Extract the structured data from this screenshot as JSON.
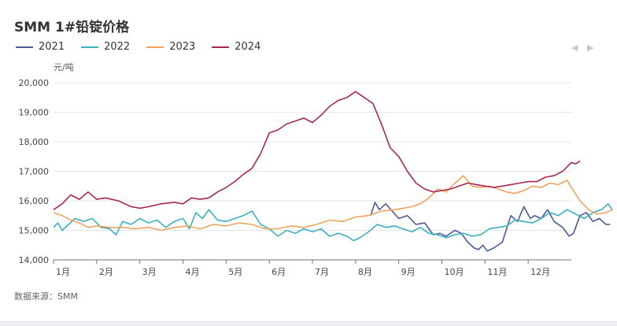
{
  "chart_data": {
    "type": "line",
    "title": "SMM 1#铅锭价格",
    "ylabel": "元/吨",
    "ylim": [
      14000,
      20000
    ],
    "yticks": [
      14000,
      15000,
      16000,
      17000,
      18000,
      19000,
      20000
    ],
    "ytick_labels": [
      "14,000",
      "15,000",
      "16,000",
      "17,000",
      "18,000",
      "19,000",
      "20,000"
    ],
    "categories": [
      "1月",
      "2月",
      "3月",
      "4月",
      "5月",
      "6月",
      "7月",
      "8月",
      "9月",
      "10月",
      "11月",
      "12月"
    ],
    "grid": true,
    "legend_position": "top-left",
    "source": "数据来源：SMM",
    "series": [
      {
        "name": "2021",
        "color": "#4a5b96",
        "x": [
          7.35,
          7.45,
          7.55,
          7.7,
          7.85,
          8.0,
          8.2,
          8.4,
          8.6,
          8.8,
          8.95,
          9.1,
          9.3,
          9.45,
          9.6,
          9.75,
          9.85,
          9.95,
          10.05,
          10.2,
          10.4,
          10.6,
          10.75,
          10.9,
          11.05,
          11.15,
          11.3,
          11.45,
          11.6,
          11.8,
          11.95,
          12.05,
          12.2,
          12.35,
          12.5,
          12.65,
          12.8,
          12.9
        ],
        "y": [
          15500,
          15950,
          15700,
          15900,
          15650,
          15400,
          15500,
          15200,
          15250,
          14850,
          14900,
          14800,
          15000,
          14900,
          14600,
          14400,
          14350,
          14500,
          14300,
          14400,
          14600,
          15500,
          15300,
          15800,
          15400,
          15500,
          15400,
          15700,
          15300,
          15100,
          14800,
          14900,
          15500,
          15600,
          15300,
          15400,
          15200,
          15200
        ]
      },
      {
        "name": "2022",
        "color": "#3bb0c0",
        "x": [
          0.0,
          0.1,
          0.2,
          0.35,
          0.5,
          0.7,
          0.9,
          1.1,
          1.3,
          1.45,
          1.6,
          1.8,
          2.0,
          2.2,
          2.4,
          2.6,
          2.8,
          3.0,
          3.15,
          3.3,
          3.45,
          3.6,
          3.8,
          4.0,
          4.2,
          4.4,
          4.6,
          4.8,
          5.0,
          5.2,
          5.4,
          5.6,
          5.8,
          6.0,
          6.2,
          6.4,
          6.6,
          6.8,
          6.95,
          7.1,
          7.3,
          7.5,
          7.7,
          7.9,
          8.1,
          8.3,
          8.5,
          8.7,
          8.9,
          9.1,
          9.3,
          9.5,
          9.7,
          9.9,
          10.1,
          10.3,
          10.5,
          10.7,
          10.9,
          11.1,
          11.3,
          11.5,
          11.7,
          11.9,
          12.1,
          12.3,
          12.5,
          12.7,
          12.85,
          12.95
        ],
        "y": [
          15100,
          15250,
          15000,
          15200,
          15400,
          15300,
          15400,
          15100,
          15050,
          14850,
          15300,
          15200,
          15400,
          15250,
          15350,
          15100,
          15300,
          15400,
          15050,
          15600,
          15400,
          15700,
          15350,
          15300,
          15400,
          15500,
          15650,
          15200,
          15050,
          14800,
          15000,
          14900,
          15050,
          14950,
          15050,
          14800,
          14900,
          14800,
          14650,
          14750,
          14950,
          15200,
          15100,
          15150,
          15050,
          14950,
          15100,
          14900,
          14850,
          14750,
          14850,
          14900,
          14800,
          14850,
          15050,
          15100,
          15150,
          15350,
          15300,
          15250,
          15400,
          15600,
          15500,
          15700,
          15550,
          15400,
          15600,
          15700,
          15900,
          15700
        ]
      },
      {
        "name": "2023",
        "color": "#f0a35e",
        "x": [
          0.0,
          0.2,
          0.4,
          0.6,
          0.8,
          1.0,
          1.3,
          1.6,
          1.9,
          2.2,
          2.5,
          2.8,
          3.1,
          3.4,
          3.7,
          4.0,
          4.3,
          4.6,
          4.9,
          5.2,
          5.5,
          5.8,
          6.1,
          6.4,
          6.7,
          7.0,
          7.3,
          7.6,
          7.9,
          8.1,
          8.3,
          8.5,
          8.7,
          8.9,
          9.1,
          9.3,
          9.5,
          9.7,
          9.9,
          10.1,
          10.3,
          10.5,
          10.7,
          10.9,
          11.1,
          11.3,
          11.5,
          11.7,
          11.9,
          12.0,
          12.2,
          12.4,
          12.6,
          12.8,
          12.95
        ],
        "y": [
          15600,
          15500,
          15350,
          15250,
          15100,
          15150,
          15100,
          15100,
          15050,
          15100,
          15000,
          15100,
          15150,
          15050,
          15200,
          15150,
          15250,
          15200,
          15050,
          15050,
          15150,
          15100,
          15200,
          15350,
          15300,
          15450,
          15500,
          15650,
          15700,
          15750,
          15800,
          15900,
          16100,
          16400,
          16300,
          16600,
          16850,
          16500,
          16450,
          16500,
          16400,
          16300,
          16250,
          16350,
          16500,
          16450,
          16600,
          16550,
          16700,
          16450,
          16000,
          15700,
          15550,
          15600,
          15700
        ]
      },
      {
        "name": "2024",
        "color": "#a8274f",
        "x": [
          0.0,
          0.2,
          0.4,
          0.6,
          0.8,
          1.0,
          1.2,
          1.5,
          1.8,
          2.0,
          2.2,
          2.5,
          2.8,
          3.0,
          3.2,
          3.4,
          3.6,
          3.8,
          4.0,
          4.2,
          4.4,
          4.6,
          4.8,
          5.0,
          5.2,
          5.4,
          5.6,
          5.8,
          6.0,
          6.2,
          6.4,
          6.6,
          6.8,
          7.0,
          7.2,
          7.4,
          7.6,
          7.8,
          8.0,
          8.2,
          8.4,
          8.6,
          8.8,
          9.0,
          9.2,
          9.4,
          9.6,
          9.8,
          10.0,
          10.2,
          10.4,
          10.6,
          10.8,
          11.0,
          11.2,
          11.4,
          11.6,
          11.8,
          12.0,
          12.1,
          12.2
        ],
        "y": [
          15700,
          15900,
          16200,
          16050,
          16300,
          16050,
          16100,
          16000,
          15800,
          15750,
          15800,
          15900,
          15950,
          15900,
          16100,
          16050,
          16100,
          16300,
          16450,
          16650,
          16900,
          17100,
          17600,
          18300,
          18400,
          18600,
          18700,
          18800,
          18650,
          18900,
          19200,
          19400,
          19500,
          19700,
          19500,
          19300,
          18600,
          17800,
          17500,
          17000,
          16600,
          16400,
          16300,
          16350,
          16400,
          16500,
          16600,
          16550,
          16500,
          16450,
          16500,
          16550,
          16600,
          16650,
          16650,
          16800,
          16850,
          17000,
          17300,
          17250,
          17350
        ]
      }
    ]
  },
  "pager": {
    "prev": "◀",
    "next": "▶"
  }
}
